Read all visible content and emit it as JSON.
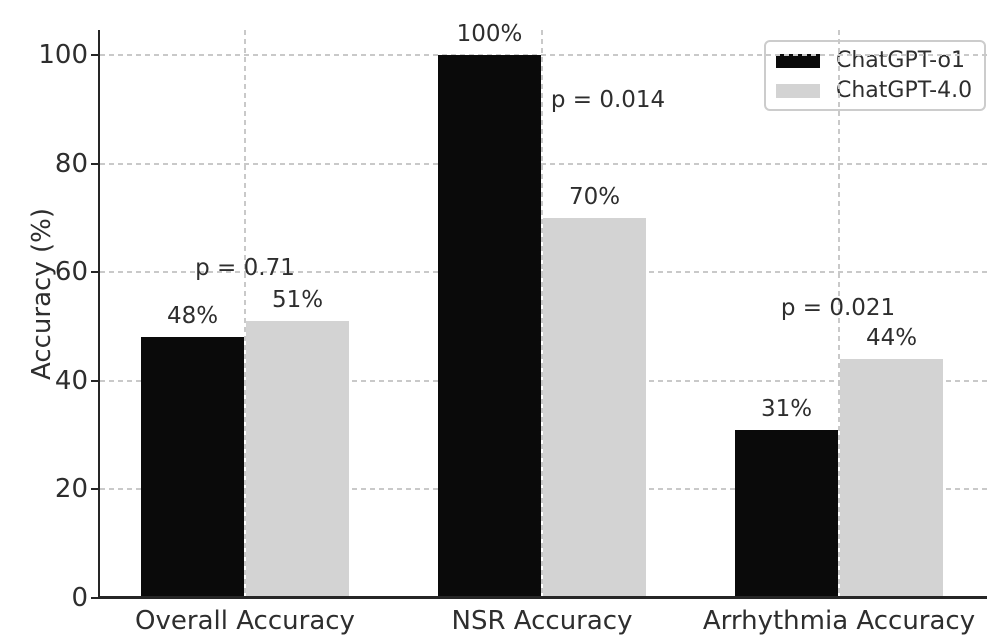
{
  "chart_data": {
    "type": "bar",
    "title": "",
    "xlabel": "",
    "ylabel": "Accuracy (%)",
    "ylim": [
      0,
      100
    ],
    "yticks": [
      0,
      20,
      40,
      60,
      80,
      100
    ],
    "grid": true,
    "categories": [
      "Overall Accuracy",
      "NSR Accuracy",
      "Arrhythmia Accuracy"
    ],
    "series": [
      {
        "name": "ChatGPT-o1",
        "color": "#0a0a0a",
        "values": [
          48,
          100,
          31
        ],
        "value_labels": [
          "48%",
          "100%",
          "31%"
        ]
      },
      {
        "name": "ChatGPT-4.0",
        "color": "#d3d3d3",
        "values": [
          51,
          70,
          44
        ],
        "value_labels": [
          "51%",
          "70%",
          "44%"
        ]
      }
    ],
    "p_values": [
      "p = 0.71",
      "p = 0.014",
      "p = 0.021"
    ],
    "legend": {
      "position": "upper right",
      "entries": [
        "ChatGPT-o1",
        "ChatGPT-4.0"
      ]
    }
  }
}
